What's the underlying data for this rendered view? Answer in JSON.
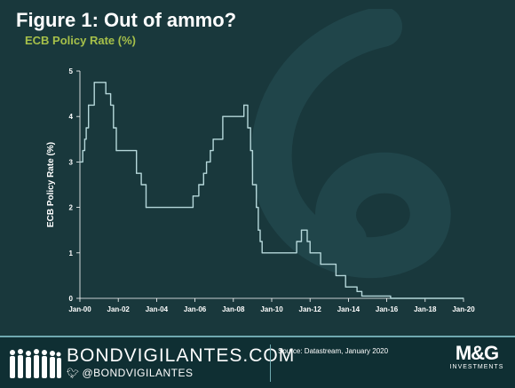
{
  "header": {
    "title": "Figure 1: Out of ammo?",
    "subtitle": "ECB Policy Rate (%)"
  },
  "footer": {
    "brand": "BONDVIGILANTES.COM",
    "handle": "@BONDVIGILANTES",
    "source": "Source: Datastream, January 2020",
    "logo_main": "M&G",
    "logo_sub": "INVESTMENTS"
  },
  "colors": {
    "background": "#19383c",
    "line": "#b5d7da",
    "accent": "#a6c04a"
  },
  "chart_data": {
    "type": "line",
    "title": "",
    "ylabel": "ECB Policy Rate (%)",
    "xlabel": "",
    "ylim": [
      0,
      5
    ],
    "xlim": [
      2000,
      2020
    ],
    "yticks": [
      "0",
      "1",
      "2",
      "3",
      "4",
      "5"
    ],
    "xticks": [
      "Jan-00",
      "Jan-02",
      "Jan-04",
      "Jan-06",
      "Jan-08",
      "Jan-10",
      "Jan-12",
      "Jan-14",
      "Jan-16",
      "Jan-18",
      "Jan-20"
    ],
    "grid": false,
    "series": [
      {
        "values": [
          [
            2000.0,
            3.0
          ],
          [
            2000.15,
            3.25
          ],
          [
            2000.25,
            3.5
          ],
          [
            2000.33,
            3.75
          ],
          [
            2000.45,
            4.25
          ],
          [
            2000.75,
            4.75
          ],
          [
            2001.35,
            4.5
          ],
          [
            2001.6,
            4.25
          ],
          [
            2001.75,
            3.75
          ],
          [
            2001.9,
            3.25
          ],
          [
            2002.95,
            2.75
          ],
          [
            2003.2,
            2.5
          ],
          [
            2003.45,
            2.0
          ],
          [
            2005.9,
            2.25
          ],
          [
            2006.2,
            2.5
          ],
          [
            2006.45,
            2.75
          ],
          [
            2006.6,
            3.0
          ],
          [
            2006.8,
            3.25
          ],
          [
            2006.95,
            3.5
          ],
          [
            2007.45,
            4.0
          ],
          [
            2008.55,
            4.25
          ],
          [
            2008.75,
            3.75
          ],
          [
            2008.9,
            3.25
          ],
          [
            2009.0,
            2.5
          ],
          [
            2009.2,
            2.0
          ],
          [
            2009.3,
            1.5
          ],
          [
            2009.4,
            1.25
          ],
          [
            2009.5,
            1.0
          ],
          [
            2011.3,
            1.25
          ],
          [
            2011.55,
            1.5
          ],
          [
            2011.85,
            1.25
          ],
          [
            2012.0,
            1.0
          ],
          [
            2012.55,
            0.75
          ],
          [
            2013.35,
            0.5
          ],
          [
            2013.85,
            0.25
          ],
          [
            2014.45,
            0.15
          ],
          [
            2014.7,
            0.05
          ],
          [
            2016.2,
            0.0
          ],
          [
            2020.0,
            0.0
          ]
        ]
      }
    ]
  }
}
